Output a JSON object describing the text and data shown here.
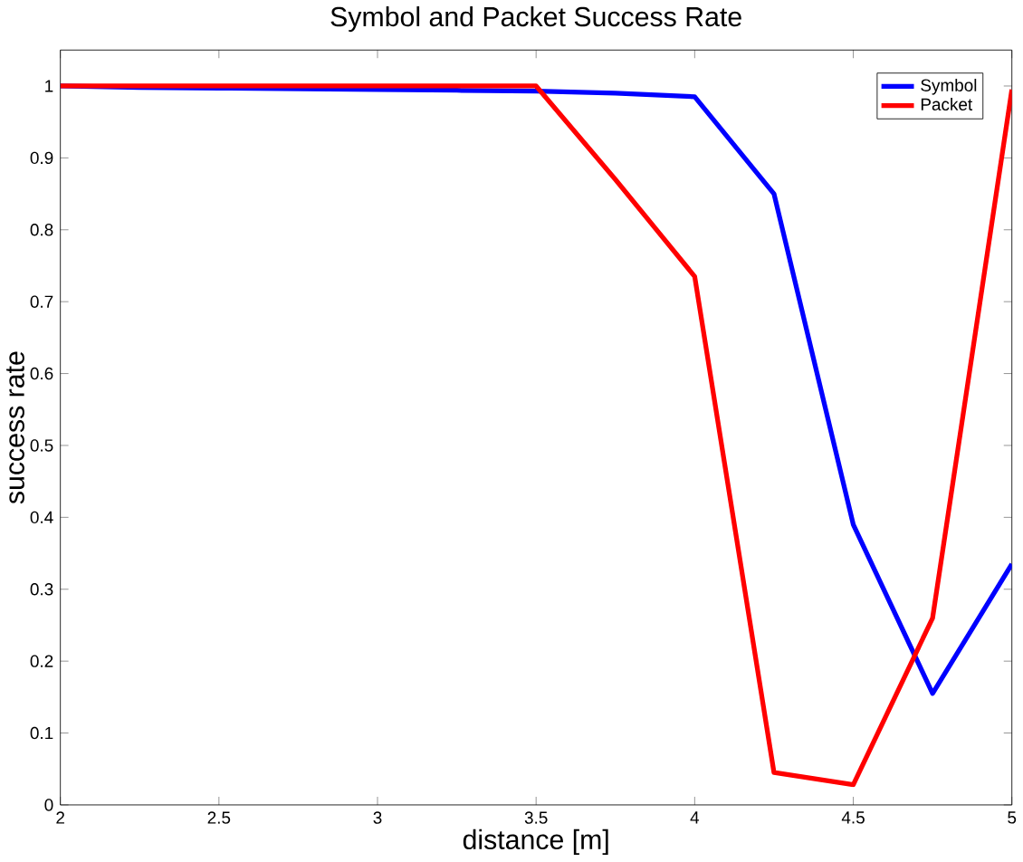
{
  "chart_data": {
    "type": "line",
    "title": "Symbol and Packet Success Rate",
    "xlabel": "distance [m]",
    "ylabel": "success rate",
    "x": [
      2,
      2.25,
      2.5,
      2.75,
      3,
      3.25,
      3.5,
      3.75,
      4,
      4.25,
      4.5,
      4.75,
      5
    ],
    "series": [
      {
        "name": "Symbol",
        "color": "#0000ff",
        "values": [
          1,
          0.998,
          0.997,
          0.996,
          0.995,
          0.994,
          0.993,
          0.99,
          0.985,
          0.85,
          0.39,
          0.155,
          0.335
        ]
      },
      {
        "name": "Packet",
        "color": "#ff0000",
        "values": [
          1,
          1,
          1,
          1,
          1,
          1,
          1,
          0.87,
          0.735,
          0.045,
          0.028,
          0.26,
          0.995
        ]
      }
    ],
    "xlim": [
      2,
      5
    ],
    "ylim": [
      0,
      1.05
    ],
    "xticks": [
      2,
      2.5,
      3,
      3.5,
      4,
      4.5,
      5
    ],
    "yticks": [
      0,
      0.1,
      0.2,
      0.3,
      0.4,
      0.5,
      0.6,
      0.7,
      0.8,
      0.9,
      1
    ],
    "legend": "top right",
    "grid": false,
    "marker": "none",
    "line_style": "solid"
  }
}
